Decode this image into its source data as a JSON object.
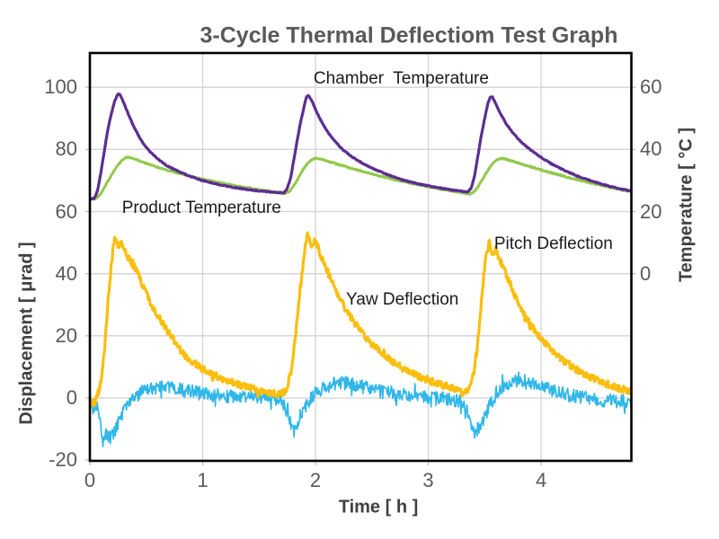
{
  "title": {
    "text": "3-Cycle Thermal Deflectiom Test Graph"
  },
  "colors": {
    "background": "#ffffff",
    "grid": "#d3d3d3",
    "border": "#000000",
    "tick_text": "#595959",
    "axis_title_text": "#404040",
    "annotation_text": "#1a1a1a",
    "title_text": "#595959"
  },
  "chart_data": {
    "type": "line",
    "title": "3-Cycle Thermal Deflectiom Test Graph",
    "xlabel": "Time [ h ]",
    "ylabel_left": "Displacement [ μrad ]",
    "ylabel_right": "Temperature [ °C ]",
    "xlim": [
      0,
      4.8
    ],
    "ylim_left": [
      -20,
      110
    ],
    "right_axis_offset": 40,
    "grid": true,
    "legend_position": "inline-annotations",
    "x_ticks": [
      0,
      1,
      2,
      3,
      4
    ],
    "y_ticks_left": [
      100,
      80,
      60,
      40,
      20,
      0,
      -20
    ],
    "y_ticks_right": [
      60,
      40,
      20,
      0
    ],
    "x_gridlines": [
      1,
      2,
      3,
      4
    ],
    "y_gridlines": [
      0,
      20,
      40,
      60,
      80,
      100
    ],
    "series": [
      {
        "name": "product-temperature",
        "label": "Product Temperature",
        "unit": "°C",
        "axis": "right",
        "color": "#92C94C",
        "line_width": 3.0,
        "noise_amp": 0.18,
        "spike_prob": 0.02,
        "spike_mult": 1.6,
        "annotation": {
          "t": 0.99,
          "v": 61.0
        },
        "keypoints": [
          [
            0,
            24
          ],
          [
            0.06,
            24.3
          ],
          [
            0.1,
            26
          ],
          [
            0.14,
            28.5
          ],
          [
            0.18,
            31
          ],
          [
            0.22,
            33.5
          ],
          [
            0.26,
            35.5
          ],
          [
            0.3,
            37
          ],
          [
            0.33,
            37.5
          ],
          [
            0.37,
            37.3
          ],
          [
            0.42,
            36.6
          ],
          [
            0.5,
            35.5
          ],
          [
            0.58,
            34.5
          ],
          [
            0.68,
            33.4
          ],
          [
            0.8,
            32.2
          ],
          [
            0.93,
            31
          ],
          [
            1.07,
            29.9
          ],
          [
            1.22,
            28.8
          ],
          [
            1.37,
            27.8
          ],
          [
            1.52,
            26.9
          ],
          [
            1.64,
            26.2
          ],
          [
            1.73,
            25.7
          ],
          [
            1.77,
            26.5
          ],
          [
            1.81,
            28.5
          ],
          [
            1.85,
            31
          ],
          [
            1.89,
            33.5
          ],
          [
            1.93,
            35.5
          ],
          [
            1.97,
            36.8
          ],
          [
            2.01,
            37.2
          ],
          [
            2.06,
            36.8
          ],
          [
            2.13,
            36
          ],
          [
            2.22,
            35
          ],
          [
            2.32,
            33.9
          ],
          [
            2.44,
            32.7
          ],
          [
            2.57,
            31.4
          ],
          [
            2.71,
            30.2
          ],
          [
            2.86,
            29
          ],
          [
            3.01,
            27.9
          ],
          [
            3.16,
            26.9
          ],
          [
            3.29,
            26.1
          ],
          [
            3.37,
            25.6
          ],
          [
            3.41,
            26.5
          ],
          [
            3.45,
            28.5
          ],
          [
            3.49,
            31
          ],
          [
            3.53,
            33.5
          ],
          [
            3.57,
            35.5
          ],
          [
            3.61,
            36.8
          ],
          [
            3.65,
            37.1
          ],
          [
            3.7,
            36.7
          ],
          [
            3.78,
            35.8
          ],
          [
            3.88,
            34.7
          ],
          [
            4.0,
            33.4
          ],
          [
            4.12,
            32.2
          ],
          [
            4.25,
            30.9
          ],
          [
            4.38,
            29.7
          ],
          [
            4.5,
            28.7
          ],
          [
            4.62,
            27.7
          ],
          [
            4.72,
            27
          ],
          [
            4.8,
            26.4
          ]
        ]
      },
      {
        "name": "chamber-temperature",
        "label": "Chamber  Temperature",
        "unit": "°C",
        "axis": "right",
        "color": "#5C2E91",
        "line_width": 3.2,
        "noise_amp": 0.14,
        "spike_prob": 0.02,
        "spike_mult": 1.5,
        "annotation": {
          "t": 2.76,
          "v": 102.7
        },
        "keypoints": [
          [
            0,
            24
          ],
          [
            0.04,
            24.2
          ],
          [
            0.07,
            27
          ],
          [
            0.1,
            33
          ],
          [
            0.13,
            40
          ],
          [
            0.16,
            46.5
          ],
          [
            0.19,
            51.5
          ],
          [
            0.22,
            55.5
          ],
          [
            0.25,
            58
          ],
          [
            0.27,
            57.5
          ],
          [
            0.3,
            55
          ],
          [
            0.34,
            51.5
          ],
          [
            0.38,
            48
          ],
          [
            0.43,
            44.5
          ],
          [
            0.48,
            41.5
          ],
          [
            0.54,
            39
          ],
          [
            0.6,
            37
          ],
          [
            0.67,
            35
          ],
          [
            0.75,
            33.5
          ],
          [
            0.85,
            31.9
          ],
          [
            0.95,
            30.5
          ],
          [
            1.05,
            29.5
          ],
          [
            1.18,
            28.4
          ],
          [
            1.32,
            27.5
          ],
          [
            1.46,
            26.8
          ],
          [
            1.6,
            26.3
          ],
          [
            1.72,
            26
          ],
          [
            1.75,
            27.5
          ],
          [
            1.78,
            31
          ],
          [
            1.81,
            37
          ],
          [
            1.84,
            43.5
          ],
          [
            1.87,
            49
          ],
          [
            1.9,
            54
          ],
          [
            1.92,
            57
          ],
          [
            1.94,
            57.3
          ],
          [
            1.97,
            55.5
          ],
          [
            2.01,
            52
          ],
          [
            2.06,
            48.5
          ],
          [
            2.11,
            45.5
          ],
          [
            2.17,
            42.7
          ],
          [
            2.24,
            40
          ],
          [
            2.32,
            37.7
          ],
          [
            2.41,
            35.7
          ],
          [
            2.51,
            33.8
          ],
          [
            2.63,
            32
          ],
          [
            2.76,
            30.3
          ],
          [
            2.9,
            29
          ],
          [
            3.05,
            27.9
          ],
          [
            3.2,
            27
          ],
          [
            3.35,
            26.3
          ],
          [
            3.38,
            27.5
          ],
          [
            3.41,
            31.5
          ],
          [
            3.44,
            38
          ],
          [
            3.47,
            44.5
          ],
          [
            3.5,
            50
          ],
          [
            3.53,
            55
          ],
          [
            3.55,
            57
          ],
          [
            3.57,
            56.8
          ],
          [
            3.6,
            54.5
          ],
          [
            3.64,
            51.5
          ],
          [
            3.69,
            48.3
          ],
          [
            3.75,
            45.3
          ],
          [
            3.82,
            42.5
          ],
          [
            3.9,
            40
          ],
          [
            4.0,
            37.4
          ],
          [
            4.1,
            35.2
          ],
          [
            4.21,
            33.2
          ],
          [
            4.33,
            31.3
          ],
          [
            4.46,
            29.7
          ],
          [
            4.58,
            28.4
          ],
          [
            4.69,
            27.4
          ],
          [
            4.8,
            26.6
          ]
        ]
      },
      {
        "name": "yaw-deflection",
        "label": "Yaw Deflection",
        "unit": "μrad",
        "axis": "left",
        "color": "#2FB7E9",
        "line_width": 1.7,
        "noise_amp": 2.2,
        "spike_prob": 0.06,
        "spike_mult": 1.9,
        "annotation": {
          "t": 2.77,
          "v": 31.5
        },
        "keypoints": [
          [
            0,
            0.5
          ],
          [
            0.02,
            -2
          ],
          [
            0.04,
            -4.5
          ],
          [
            0.06,
            -2.5
          ],
          [
            0.09,
            -6
          ],
          [
            0.12,
            -15
          ],
          [
            0.15,
            -11
          ],
          [
            0.18,
            -13
          ],
          [
            0.21,
            -11.5
          ],
          [
            0.25,
            -8.5
          ],
          [
            0.29,
            -5
          ],
          [
            0.34,
            -2
          ],
          [
            0.4,
            0.5
          ],
          [
            0.47,
            2.3
          ],
          [
            0.55,
            3.2
          ],
          [
            0.64,
            3.6
          ],
          [
            0.74,
            3.2
          ],
          [
            0.85,
            2.4
          ],
          [
            0.98,
            1.5
          ],
          [
            1.12,
            0.8
          ],
          [
            1.28,
            0.5
          ],
          [
            1.44,
            0.6
          ],
          [
            1.58,
            0.2
          ],
          [
            1.68,
            -0.5
          ],
          [
            1.73,
            -2.5
          ],
          [
            1.77,
            -7
          ],
          [
            1.8,
            -11
          ],
          [
            1.83,
            -9.5
          ],
          [
            1.86,
            -6
          ],
          [
            1.91,
            -3
          ],
          [
            1.97,
            0.5
          ],
          [
            2.05,
            2.8
          ],
          [
            2.14,
            4.3
          ],
          [
            2.24,
            5
          ],
          [
            2.35,
            4.2
          ],
          [
            2.47,
            3
          ],
          [
            2.6,
            1.8
          ],
          [
            2.75,
            1
          ],
          [
            2.92,
            0.4
          ],
          [
            3.08,
            0
          ],
          [
            3.22,
            -0.6
          ],
          [
            3.31,
            -1.5
          ],
          [
            3.36,
            -5
          ],
          [
            3.4,
            -11
          ],
          [
            3.44,
            -10
          ],
          [
            3.49,
            -6.5
          ],
          [
            3.55,
            -2
          ],
          [
            3.62,
            2.5
          ],
          [
            3.71,
            5
          ],
          [
            3.81,
            6
          ],
          [
            3.92,
            4.8
          ],
          [
            4.05,
            3
          ],
          [
            4.2,
            1.3
          ],
          [
            4.35,
            0.2
          ],
          [
            4.5,
            -0.6
          ],
          [
            4.65,
            -1
          ],
          [
            4.8,
            -1
          ]
        ]
      },
      {
        "name": "pitch-deflection",
        "label": "Pitch Deflection",
        "unit": "μrad",
        "axis": "left",
        "color": "#FBBE0D",
        "line_width": 3.2,
        "noise_amp": 1.1,
        "spike_prob": 0.05,
        "spike_mult": 2.0,
        "annotation": {
          "t": 4.11,
          "v": 49.5
        },
        "keypoints": [
          [
            0,
            -2
          ],
          [
            0.04,
            -1.5
          ],
          [
            0.07,
            0.5
          ],
          [
            0.1,
            6
          ],
          [
            0.13,
            16
          ],
          [
            0.16,
            30
          ],
          [
            0.19,
            43
          ],
          [
            0.22,
            52
          ],
          [
            0.25,
            48
          ],
          [
            0.28,
            51
          ],
          [
            0.31,
            47
          ],
          [
            0.35,
            44.5
          ],
          [
            0.4,
            42
          ],
          [
            0.45,
            38
          ],
          [
            0.5,
            33.5
          ],
          [
            0.55,
            29.5
          ],
          [
            0.62,
            25.5
          ],
          [
            0.7,
            21
          ],
          [
            0.78,
            16.5
          ],
          [
            0.86,
            13
          ],
          [
            0.95,
            10.5
          ],
          [
            1.05,
            8.3
          ],
          [
            1.17,
            6.3
          ],
          [
            1.3,
            4.5
          ],
          [
            1.44,
            3
          ],
          [
            1.58,
            1.8
          ],
          [
            1.7,
            1.2
          ],
          [
            1.74,
            2.5
          ],
          [
            1.78,
            8
          ],
          [
            1.82,
            19
          ],
          [
            1.86,
            33
          ],
          [
            1.9,
            46
          ],
          [
            1.93,
            54
          ],
          [
            1.96,
            49.5
          ],
          [
            2.0,
            51
          ],
          [
            2.04,
            46
          ],
          [
            2.09,
            42
          ],
          [
            2.15,
            37
          ],
          [
            2.22,
            31.5
          ],
          [
            2.3,
            26.5
          ],
          [
            2.39,
            22
          ],
          [
            2.48,
            18
          ],
          [
            2.58,
            14.5
          ],
          [
            2.69,
            11.5
          ],
          [
            2.81,
            8.8
          ],
          [
            2.94,
            6.5
          ],
          [
            3.08,
            4.7
          ],
          [
            3.22,
            3.2
          ],
          [
            3.33,
            2.2
          ],
          [
            3.37,
            3.5
          ],
          [
            3.41,
            9
          ],
          [
            3.45,
            22
          ],
          [
            3.48,
            35
          ],
          [
            3.51,
            46
          ],
          [
            3.54,
            50
          ],
          [
            3.57,
            46.5
          ],
          [
            3.6,
            48
          ],
          [
            3.64,
            44
          ],
          [
            3.69,
            40
          ],
          [
            3.75,
            34.5
          ],
          [
            3.82,
            29
          ],
          [
            3.9,
            24
          ],
          [
            3.99,
            19.5
          ],
          [
            4.09,
            15.5
          ],
          [
            4.2,
            12
          ],
          [
            4.32,
            9
          ],
          [
            4.45,
            6.5
          ],
          [
            4.58,
            4.5
          ],
          [
            4.7,
            3
          ],
          [
            4.8,
            2.2
          ]
        ]
      }
    ]
  }
}
